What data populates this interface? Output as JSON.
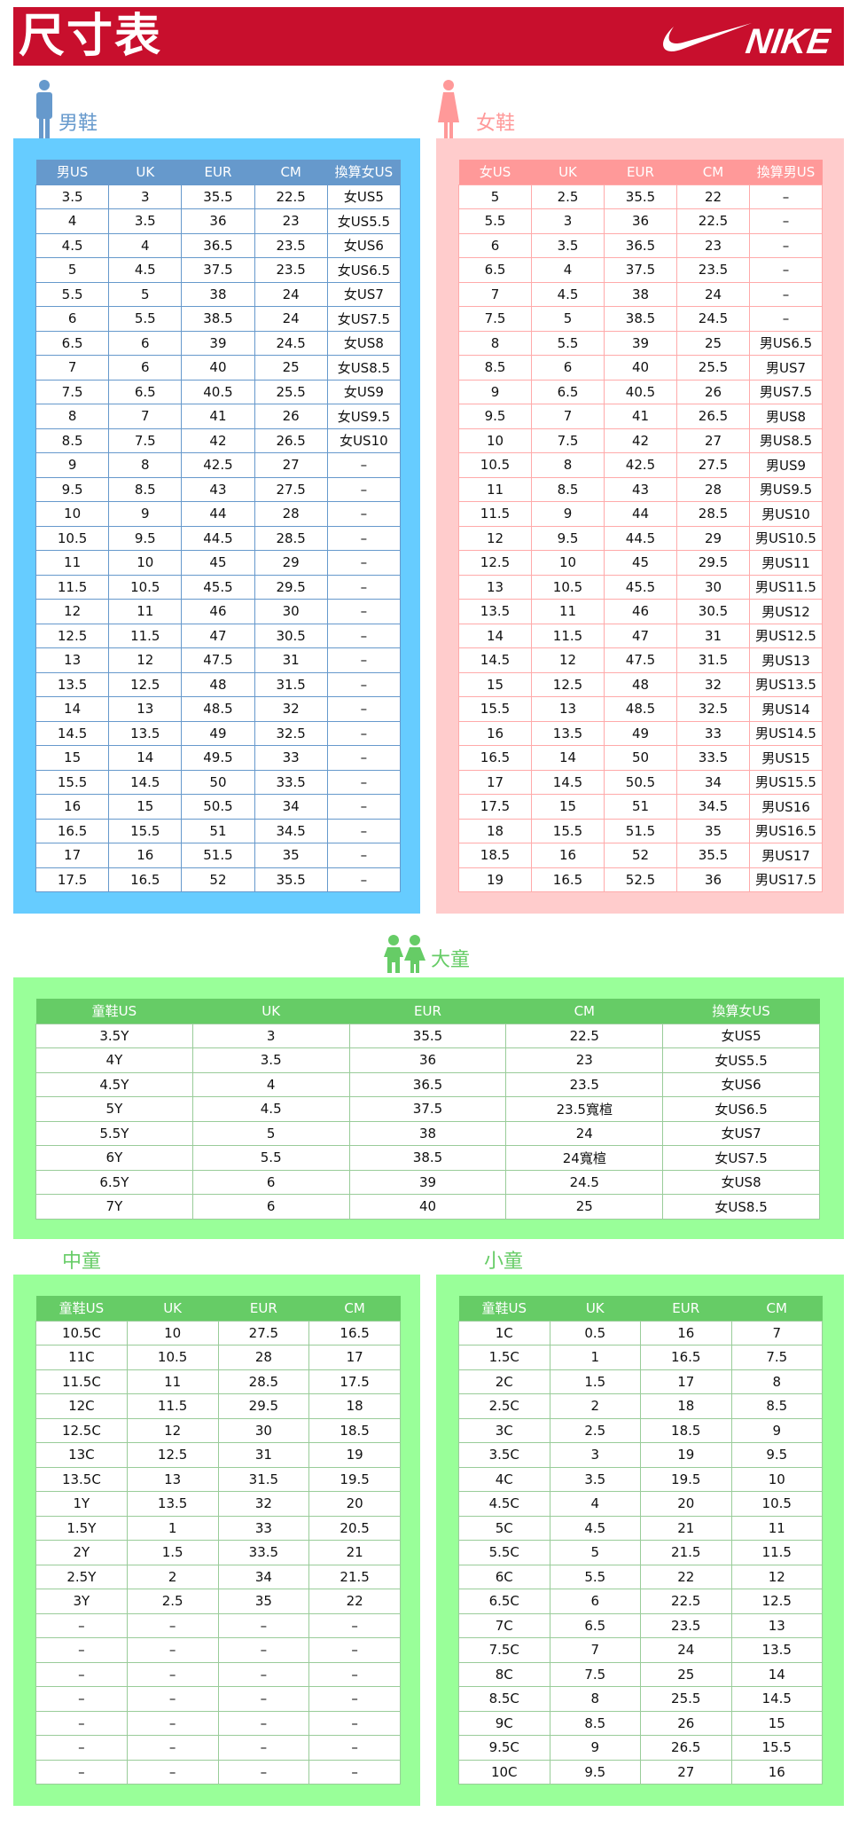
{
  "header": {
    "title": "尺寸表",
    "brand": "NIKE"
  },
  "colors": {
    "banner": "#c80f2d",
    "men_panel": "#66ccff",
    "men_header": "#6699cc",
    "women_panel": "#ffcccc",
    "women_header": "#ff9999",
    "kids_panel": "#99ff99",
    "kids_header": "#66cc66"
  },
  "men": {
    "label": "男鞋",
    "icon": "man-icon",
    "columns": [
      "男US",
      "UK",
      "EUR",
      "CM",
      "換算女US"
    ],
    "rows": [
      [
        "3.5",
        "3",
        "35.5",
        "22.5",
        "女US5"
      ],
      [
        "4",
        "3.5",
        "36",
        "23",
        "女US5.5"
      ],
      [
        "4.5",
        "4",
        "36.5",
        "23.5",
        "女US6"
      ],
      [
        "5",
        "4.5",
        "37.5",
        "23.5",
        "女US6.5"
      ],
      [
        "5.5",
        "5",
        "38",
        "24",
        "女US7"
      ],
      [
        "6",
        "5.5",
        "38.5",
        "24",
        "女US7.5"
      ],
      [
        "6.5",
        "6",
        "39",
        "24.5",
        "女US8"
      ],
      [
        "7",
        "6",
        "40",
        "25",
        "女US8.5"
      ],
      [
        "7.5",
        "6.5",
        "40.5",
        "25.5",
        "女US9"
      ],
      [
        "8",
        "7",
        "41",
        "26",
        "女US9.5"
      ],
      [
        "8.5",
        "7.5",
        "42",
        "26.5",
        "女US10"
      ],
      [
        "9",
        "8",
        "42.5",
        "27",
        "–"
      ],
      [
        "9.5",
        "8.5",
        "43",
        "27.5",
        "–"
      ],
      [
        "10",
        "9",
        "44",
        "28",
        "–"
      ],
      [
        "10.5",
        "9.5",
        "44.5",
        "28.5",
        "–"
      ],
      [
        "11",
        "10",
        "45",
        "29",
        "–"
      ],
      [
        "11.5",
        "10.5",
        "45.5",
        "29.5",
        "–"
      ],
      [
        "12",
        "11",
        "46",
        "30",
        "–"
      ],
      [
        "12.5",
        "11.5",
        "47",
        "30.5",
        "–"
      ],
      [
        "13",
        "12",
        "47.5",
        "31",
        "–"
      ],
      [
        "13.5",
        "12.5",
        "48",
        "31.5",
        "–"
      ],
      [
        "14",
        "13",
        "48.5",
        "32",
        "–"
      ],
      [
        "14.5",
        "13.5",
        "49",
        "32.5",
        "–"
      ],
      [
        "15",
        "14",
        "49.5",
        "33",
        "–"
      ],
      [
        "15.5",
        "14.5",
        "50",
        "33.5",
        "–"
      ],
      [
        "16",
        "15",
        "50.5",
        "34",
        "–"
      ],
      [
        "16.5",
        "15.5",
        "51",
        "34.5",
        "–"
      ],
      [
        "17",
        "16",
        "51.5",
        "35",
        "–"
      ],
      [
        "17.5",
        "16.5",
        "52",
        "35.5",
        "–"
      ]
    ]
  },
  "women": {
    "label": "女鞋",
    "icon": "woman-icon",
    "columns": [
      "女US",
      "UK",
      "EUR",
      "CM",
      "換算男US"
    ],
    "rows": [
      [
        "5",
        "2.5",
        "35.5",
        "22",
        "–"
      ],
      [
        "5.5",
        "3",
        "36",
        "22.5",
        "–"
      ],
      [
        "6",
        "3.5",
        "36.5",
        "23",
        "–"
      ],
      [
        "6.5",
        "4",
        "37.5",
        "23.5",
        "–"
      ],
      [
        "7",
        "4.5",
        "38",
        "24",
        "–"
      ],
      [
        "7.5",
        "5",
        "38.5",
        "24.5",
        "–"
      ],
      [
        "8",
        "5.5",
        "39",
        "25",
        "男US6.5"
      ],
      [
        "8.5",
        "6",
        "40",
        "25.5",
        "男US7"
      ],
      [
        "9",
        "6.5",
        "40.5",
        "26",
        "男US7.5"
      ],
      [
        "9.5",
        "7",
        "41",
        "26.5",
        "男US8"
      ],
      [
        "10",
        "7.5",
        "42",
        "27",
        "男US8.5"
      ],
      [
        "10.5",
        "8",
        "42.5",
        "27.5",
        "男US9"
      ],
      [
        "11",
        "8.5",
        "43",
        "28",
        "男US9.5"
      ],
      [
        "11.5",
        "9",
        "44",
        "28.5",
        "男US10"
      ],
      [
        "12",
        "9.5",
        "44.5",
        "29",
        "男US10.5"
      ],
      [
        "12.5",
        "10",
        "45",
        "29.5",
        "男US11"
      ],
      [
        "13",
        "10.5",
        "45.5",
        "30",
        "男US11.5"
      ],
      [
        "13.5",
        "11",
        "46",
        "30.5",
        "男US12"
      ],
      [
        "14",
        "11.5",
        "47",
        "31",
        "男US12.5"
      ],
      [
        "14.5",
        "12",
        "47.5",
        "31.5",
        "男US13"
      ],
      [
        "15",
        "12.5",
        "48",
        "32",
        "男US13.5"
      ],
      [
        "15.5",
        "13",
        "48.5",
        "32.5",
        "男US14"
      ],
      [
        "16",
        "13.5",
        "49",
        "33",
        "男US14.5"
      ],
      [
        "16.5",
        "14",
        "50",
        "33.5",
        "男US15"
      ],
      [
        "17",
        "14.5",
        "50.5",
        "34",
        "男US15.5"
      ],
      [
        "17.5",
        "15",
        "51",
        "34.5",
        "男US16"
      ],
      [
        "18",
        "15.5",
        "51.5",
        "35",
        "男US16.5"
      ],
      [
        "18.5",
        "16",
        "52",
        "35.5",
        "男US17"
      ],
      [
        "19",
        "16.5",
        "52.5",
        "36",
        "男US17.5"
      ]
    ]
  },
  "big_kids": {
    "label": "大童",
    "icon": "children-icon",
    "columns": [
      "童鞋US",
      "UK",
      "EUR",
      "CM",
      "換算女US"
    ],
    "rows": [
      [
        "3.5Y",
        "3",
        "35.5",
        "22.5",
        "女US5"
      ],
      [
        "4Y",
        "3.5",
        "36",
        "23",
        "女US5.5"
      ],
      [
        "4.5Y",
        "4",
        "36.5",
        "23.5",
        "女US6"
      ],
      [
        "5Y",
        "4.5",
        "37.5",
        "23.5寬楦",
        "女US6.5"
      ],
      [
        "5.5Y",
        "5",
        "38",
        "24",
        "女US7"
      ],
      [
        "6Y",
        "5.5",
        "38.5",
        "24寬楦",
        "女US7.5"
      ],
      [
        "6.5Y",
        "6",
        "39",
        "24.5",
        "女US8"
      ],
      [
        "7Y",
        "6",
        "40",
        "25",
        "女US8.5"
      ]
    ]
  },
  "mid_kids": {
    "label": "中童",
    "columns": [
      "童鞋US",
      "UK",
      "EUR",
      "CM"
    ],
    "rows": [
      [
        "10.5C",
        "10",
        "27.5",
        "16.5"
      ],
      [
        "11C",
        "10.5",
        "28",
        "17"
      ],
      [
        "11.5C",
        "11",
        "28.5",
        "17.5"
      ],
      [
        "12C",
        "11.5",
        "29.5",
        "18"
      ],
      [
        "12.5C",
        "12",
        "30",
        "18.5"
      ],
      [
        "13C",
        "12.5",
        "31",
        "19"
      ],
      [
        "13.5C",
        "13",
        "31.5",
        "19.5"
      ],
      [
        "1Y",
        "13.5",
        "32",
        "20"
      ],
      [
        "1.5Y",
        "1",
        "33",
        "20.5"
      ],
      [
        "2Y",
        "1.5",
        "33.5",
        "21"
      ],
      [
        "2.5Y",
        "2",
        "34",
        "21.5"
      ],
      [
        "3Y",
        "2.5",
        "35",
        "22"
      ],
      [
        "–",
        "–",
        "–",
        "–"
      ],
      [
        "–",
        "–",
        "–",
        "–"
      ],
      [
        "–",
        "–",
        "–",
        "–"
      ],
      [
        "–",
        "–",
        "–",
        "–"
      ],
      [
        "–",
        "–",
        "–",
        "–"
      ],
      [
        "–",
        "–",
        "–",
        "–"
      ],
      [
        "–",
        "–",
        "–",
        "–"
      ]
    ]
  },
  "small_kids": {
    "label": "小童",
    "columns": [
      "童鞋US",
      "UK",
      "EUR",
      "CM"
    ],
    "rows": [
      [
        "1C",
        "0.5",
        "16",
        "7"
      ],
      [
        "1.5C",
        "1",
        "16.5",
        "7.5"
      ],
      [
        "2C",
        "1.5",
        "17",
        "8"
      ],
      [
        "2.5C",
        "2",
        "18",
        "8.5"
      ],
      [
        "3C",
        "2.5",
        "18.5",
        "9"
      ],
      [
        "3.5C",
        "3",
        "19",
        "9.5"
      ],
      [
        "4C",
        "3.5",
        "19.5",
        "10"
      ],
      [
        "4.5C",
        "4",
        "20",
        "10.5"
      ],
      [
        "5C",
        "4.5",
        "21",
        "11"
      ],
      [
        "5.5C",
        "5",
        "21.5",
        "11.5"
      ],
      [
        "6C",
        "5.5",
        "22",
        "12"
      ],
      [
        "6.5C",
        "6",
        "22.5",
        "12.5"
      ],
      [
        "7C",
        "6.5",
        "23.5",
        "13"
      ],
      [
        "7.5C",
        "7",
        "24",
        "13.5"
      ],
      [
        "8C",
        "7.5",
        "25",
        "14"
      ],
      [
        "8.5C",
        "8",
        "25.5",
        "14.5"
      ],
      [
        "9C",
        "8.5",
        "26",
        "15"
      ],
      [
        "9.5C",
        "9",
        "26.5",
        "15.5"
      ],
      [
        "10C",
        "9.5",
        "27",
        "16"
      ]
    ]
  }
}
